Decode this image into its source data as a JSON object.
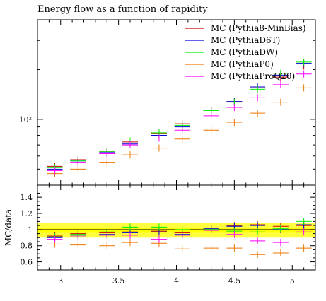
{
  "chart_data": {
    "type": "line",
    "title": "Energy flow as a function of rapidity",
    "ratio_ylabel": "MC/data",
    "x_ticks": [
      "3",
      "3.5",
      "4",
      "4.5",
      "5"
    ],
    "main_y_tick_label": "10²",
    "ratio_y_ticks": [
      "0.6",
      "0.8",
      "1",
      "1.2",
      "1.4"
    ],
    "xlim": [
      2.8,
      5.2
    ],
    "main_y_scale": "log",
    "main_ylim": [
      40,
      400
    ],
    "ratio_ylim": [
      0.5,
      1.55
    ],
    "x": [
      2.95,
      3.15,
      3.4,
      3.6,
      3.85,
      4.05,
      4.3,
      4.5,
      4.7,
      4.9,
      5.1
    ],
    "data_band": {
      "x_range": [
        2.8,
        5.2
      ],
      "outer": [
        0.9,
        1.08
      ],
      "inner": [
        0.96,
        1.02
      ],
      "color": "#ffff00"
    },
    "series": [
      {
        "name": "MC (Pythia8-MinBias)",
        "color": "#cc0000",
        "values": [
          52,
          57,
          64,
          73,
          82,
          94,
          114,
          128,
          155,
          180,
          210
        ],
        "ratio": [
          0.92,
          0.95,
          0.96,
          0.97,
          0.98,
          0.96,
          1.02,
          1.05,
          1.06,
          1.04,
          1.05
        ]
      },
      {
        "name": "MC (PythiaD6T)",
        "color": "#0000dd",
        "values": [
          50,
          56,
          63,
          71,
          80,
          90,
          113,
          128,
          157,
          185,
          218
        ],
        "ratio": [
          0.9,
          0.93,
          0.94,
          0.96,
          0.97,
          0.94,
          1.01,
          1.04,
          1.05,
          1.0,
          1.06
        ]
      },
      {
        "name": "MC (PythiaDW)",
        "color": "#00ee00",
        "values": [
          51,
          56,
          64,
          74,
          83,
          92,
          113,
          127,
          152,
          190,
          222
        ],
        "ratio": [
          0.91,
          0.94,
          0.97,
          1.03,
          1.03,
          1.0,
          1.0,
          0.98,
          0.97,
          1.01,
          1.1
        ]
      },
      {
        "name": "MC (PythiaP0)",
        "color": "#ee7700",
        "values": [
          47,
          50,
          55,
          61,
          67,
          76,
          86,
          96,
          109,
          127,
          155
        ],
        "ratio": [
          0.82,
          0.81,
          0.8,
          0.84,
          0.83,
          0.76,
          0.77,
          0.77,
          0.69,
          0.71,
          0.77
        ]
      },
      {
        "name": "MC (PythiaProQ20)",
        "color": "#ff00ff",
        "values": [
          49,
          55,
          62,
          70,
          77,
          86,
          105,
          118,
          135,
          162,
          188
        ],
        "ratio": [
          0.88,
          0.91,
          0.93,
          0.93,
          0.88,
          0.93,
          0.99,
          0.94,
          0.86,
          0.84,
          0.97
        ]
      }
    ],
    "legend_position": "top-right",
    "grid": false
  }
}
